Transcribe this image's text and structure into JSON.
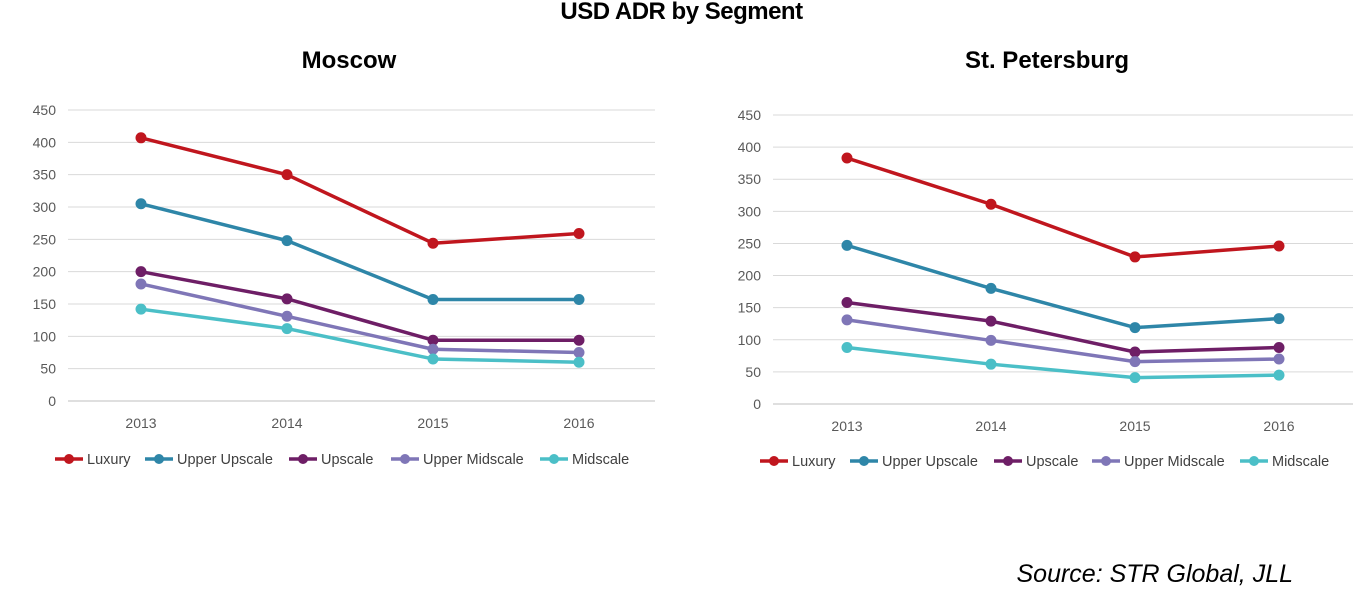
{
  "title": "USD ADR by Segment",
  "source": "Source: STR Global, JLL",
  "chart_data": [
    {
      "type": "line",
      "title": "Moscow",
      "categories": [
        "2013",
        "2014",
        "2015",
        "2016"
      ],
      "ylim": [
        0,
        450
      ],
      "yticks": [
        0,
        50,
        100,
        150,
        200,
        250,
        300,
        350,
        400,
        450
      ],
      "grid": true,
      "legend": "bottom",
      "series": [
        {
          "name": "Luxury",
          "color": "#C0161E",
          "values": [
            407,
            350,
            244,
            259
          ]
        },
        {
          "name": "Upper Upscale",
          "color": "#2E86A8",
          "values": [
            305,
            248,
            157,
            157
          ]
        },
        {
          "name": "Upscale",
          "color": "#6E1E66",
          "values": [
            200,
            158,
            94,
            94
          ]
        },
        {
          "name": "Upper Midscale",
          "color": "#7F76B7",
          "values": [
            181,
            131,
            80,
            75
          ]
        },
        {
          "name": "Midscale",
          "color": "#4BBFC7",
          "values": [
            142,
            112,
            65,
            60
          ]
        }
      ]
    },
    {
      "type": "line",
      "title": "St. Petersburg",
      "categories": [
        "2013",
        "2014",
        "2015",
        "2016"
      ],
      "ylim": [
        0,
        450
      ],
      "yticks": [
        0,
        50,
        100,
        150,
        200,
        250,
        300,
        350,
        400,
        450
      ],
      "grid": true,
      "legend": "bottom",
      "series": [
        {
          "name": "Luxury",
          "color": "#C0161E",
          "values": [
            383,
            311,
            229,
            246
          ]
        },
        {
          "name": "Upper Upscale",
          "color": "#2E86A8",
          "values": [
            247,
            180,
            119,
            133
          ]
        },
        {
          "name": "Upscale",
          "color": "#6E1E66",
          "values": [
            158,
            129,
            81,
            88
          ]
        },
        {
          "name": "Upper Midscale",
          "color": "#7F76B7",
          "values": [
            131,
            99,
            66,
            70
          ]
        },
        {
          "name": "Midscale",
          "color": "#4BBFC7",
          "values": [
            88,
            62,
            41,
            45
          ]
        }
      ]
    }
  ]
}
